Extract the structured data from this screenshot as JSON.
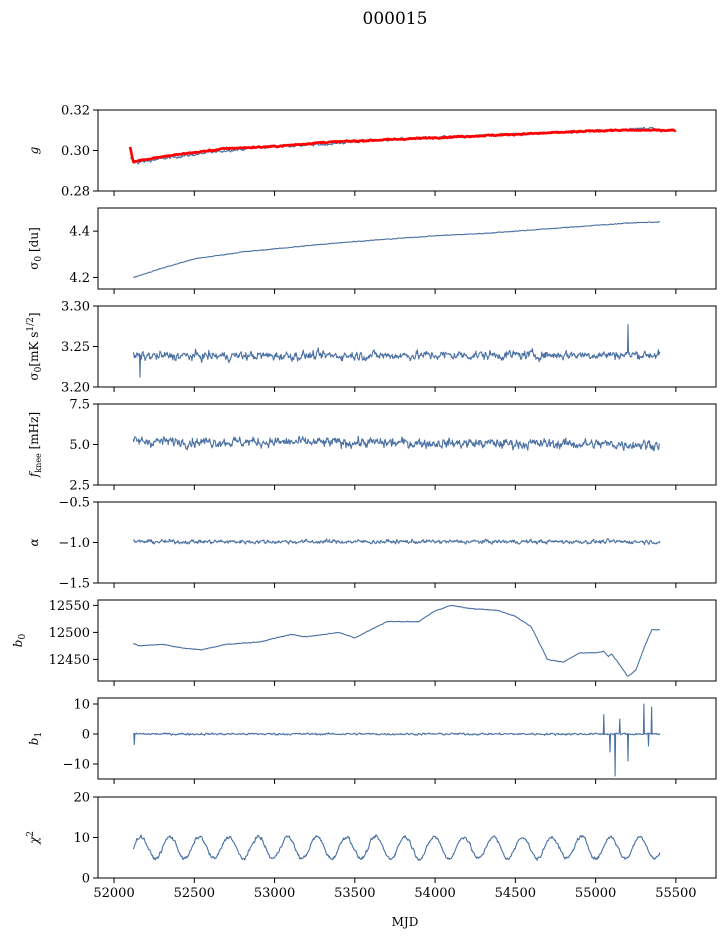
{
  "figure": {
    "title": "000015",
    "xlabel": "MJD",
    "series_color": "#4c72a4",
    "overlay_color": "#ff0000"
  },
  "chart_data": [
    {
      "type": "line",
      "ylabel": "g",
      "ylim": [
        0.28,
        0.32
      ],
      "xlim": [
        51900,
        55750
      ],
      "yticks": [
        0.28,
        0.3,
        0.32
      ],
      "ytick_labels": [
        "0.28",
        "0.30",
        "0.32"
      ],
      "series": [
        {
          "x": [
            52100,
            52150,
            52300,
            52500,
            52700,
            53000,
            53300,
            53600,
            53900,
            54200,
            54500,
            54800,
            55100,
            55350,
            55420
          ],
          "values": [
            0.296,
            0.294,
            0.296,
            0.298,
            0.3,
            0.302,
            0.303,
            0.305,
            0.306,
            0.307,
            0.308,
            0.309,
            0.31,
            0.311,
            0.31
          ],
          "noise": 0.0012
        },
        {
          "x": [
            52100,
            52120,
            52150,
            52300,
            52500,
            52700,
            53000,
            53300,
            53600,
            53900,
            54200,
            54500,
            54800,
            55100,
            55350,
            55500
          ],
          "values": [
            0.302,
            0.294,
            0.295,
            0.297,
            0.299,
            0.301,
            0.302,
            0.304,
            0.305,
            0.306,
            0.307,
            0.308,
            0.309,
            0.31,
            0.31,
            0.31
          ],
          "noise": 0.0006
        }
      ]
    },
    {
      "type": "line",
      "ylabel": "σ0 [du]",
      "ylim": [
        4.15,
        4.5
      ],
      "xlim": [
        51900,
        55750
      ],
      "yticks": [
        4.2,
        4.4
      ],
      "ytick_labels": [
        "4.2",
        "4.4"
      ],
      "series": [
        {
          "x": [
            52120,
            52300,
            52500,
            52800,
            53100,
            53400,
            53700,
            54000,
            54300,
            54600,
            54900,
            55200,
            55400
          ],
          "values": [
            4.2,
            4.24,
            4.28,
            4.31,
            4.33,
            4.35,
            4.365,
            4.38,
            4.39,
            4.405,
            4.42,
            4.435,
            4.44
          ],
          "noise": 0.003
        }
      ]
    },
    {
      "type": "line",
      "ylabel": "σ0 [mK s^1/2]",
      "ylim": [
        3.2,
        3.3
      ],
      "xlim": [
        51900,
        55750
      ],
      "yticks": [
        3.2,
        3.25,
        3.3
      ],
      "ytick_labels": [
        "3.20",
        "3.25",
        "3.30"
      ],
      "series": [
        {
          "x": [
            52120,
            55400
          ],
          "values": [
            3.238,
            3.24
          ],
          "noise": 0.01,
          "spikes": [
            [
              52160,
              3.212
            ],
            [
              55200,
              3.277
            ]
          ]
        }
      ]
    },
    {
      "type": "line",
      "ylabel": "f_knee [mHz]",
      "ylim": [
        2.5,
        7.5
      ],
      "xlim": [
        51900,
        55750
      ],
      "yticks": [
        2.5,
        5.0,
        7.5
      ],
      "ytick_labels": [
        "2.5",
        "5.0",
        "7.5"
      ],
      "series": [
        {
          "x": [
            52120,
            55400
          ],
          "values": [
            5.2,
            5.0
          ],
          "noise": 0.55
        }
      ]
    },
    {
      "type": "line",
      "ylabel": "α",
      "ylim": [
        -1.5,
        -0.5
      ],
      "xlim": [
        51900,
        55750
      ],
      "yticks": [
        -1.5,
        -1.0,
        -0.5
      ],
      "ytick_labels": [
        "−1.5",
        "−1.0",
        "−0.5"
      ],
      "series": [
        {
          "x": [
            52120,
            55400
          ],
          "values": [
            -0.99,
            -0.99
          ],
          "noise": 0.045
        }
      ]
    },
    {
      "type": "line",
      "ylabel": "b0",
      "ylim": [
        12410,
        12560
      ],
      "xlim": [
        51900,
        55750
      ],
      "yticks": [
        12450,
        12500,
        12550
      ],
      "ytick_labels": [
        "12450",
        "12500",
        "12550"
      ],
      "series": [
        {
          "x": [
            52120,
            52150,
            52300,
            52450,
            52550,
            52700,
            52900,
            53100,
            53200,
            53400,
            53500,
            53600,
            53700,
            53800,
            53900,
            54000,
            54100,
            54200,
            54300,
            54400,
            54500,
            54600,
            54700,
            54800,
            54900,
            55000,
            55050,
            55080,
            55100,
            55150,
            55200,
            55250,
            55300,
            55350,
            55400
          ],
          "values": [
            12480,
            12475,
            12478,
            12470,
            12468,
            12478,
            12482,
            12496,
            12492,
            12500,
            12490,
            12505,
            12520,
            12520,
            12520,
            12540,
            12550,
            12545,
            12543,
            12540,
            12530,
            12510,
            12450,
            12445,
            12462,
            12462,
            12465,
            12455,
            12460,
            12440,
            12418,
            12430,
            12470,
            12505,
            12505
          ],
          "noise": 1.2
        }
      ]
    },
    {
      "type": "line",
      "ylabel": "b1",
      "ylim": [
        -15,
        12
      ],
      "xlim": [
        51900,
        55750
      ],
      "yticks": [
        -10,
        0,
        10
      ],
      "ytick_labels": [
        "−10",
        "0",
        "10"
      ],
      "series": [
        {
          "x": [
            52120,
            55400
          ],
          "values": [
            0,
            0
          ],
          "noise": 0.6,
          "spikes": [
            [
              52125,
              -3.5
            ],
            [
              55050,
              6.5
            ],
            [
              55090,
              -6
            ],
            [
              55120,
              -14
            ],
            [
              55150,
              5
            ],
            [
              55200,
              -9
            ],
            [
              55300,
              10
            ],
            [
              55330,
              -4
            ],
            [
              55350,
              9
            ]
          ]
        }
      ]
    },
    {
      "type": "line",
      "ylabel": "χ2",
      "ylim": [
        0,
        20
      ],
      "xlim": [
        51900,
        55750
      ],
      "yticks": [
        0,
        10,
        20
      ],
      "ytick_labels": [
        "0",
        "10",
        "20"
      ],
      "xticks": [
        52000,
        52500,
        53000,
        53500,
        54000,
        54500,
        55000,
        55500
      ],
      "xtick_labels": [
        "52000",
        "52500",
        "53000",
        "53500",
        "54000",
        "54500",
        "55000",
        "55500"
      ],
      "series": [
        {
          "x": [
            52120,
            55400
          ],
          "values": [
            7.5,
            7.5
          ],
          "period": 183,
          "amplitude": 2.7,
          "noise": 0.8
        }
      ]
    }
  ]
}
